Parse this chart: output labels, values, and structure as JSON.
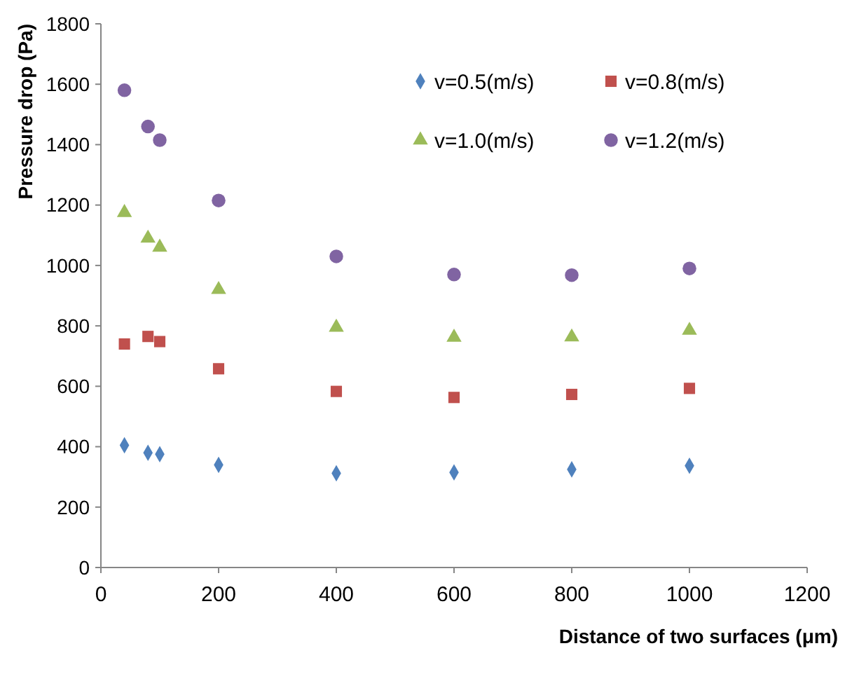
{
  "chart_data": {
    "type": "scatter",
    "xlabel": "Distance of two surfaces (μm)",
    "ylabel": "Pressure drop (Pa)",
    "x": [
      40,
      80,
      100,
      200,
      400,
      600,
      800,
      1000
    ],
    "series": [
      {
        "name": "v=0.5(m/s)",
        "color": "#4f81bd",
        "marker": "diamond",
        "values": [
          405,
          380,
          375,
          340,
          312,
          315,
          325,
          337
        ]
      },
      {
        "name": "v=0.8(m/s)",
        "color": "#c0504d",
        "marker": "square",
        "values": [
          740,
          765,
          748,
          658,
          583,
          563,
          573,
          593
        ]
      },
      {
        "name": "v=1.0(m/s)",
        "color": "#9bbb59",
        "marker": "triangle",
        "values": [
          1175,
          1090,
          1060,
          920,
          795,
          762,
          763,
          785
        ]
      },
      {
        "name": "v=1.2(m/s)",
        "color": "#8064a2",
        "marker": "circle",
        "values": [
          1580,
          1460,
          1415,
          1215,
          1030,
          970,
          968,
          990
        ]
      }
    ],
    "xlim": [
      0,
      1200
    ],
    "xticks": [
      0,
      200,
      400,
      600,
      800,
      1000,
      1200
    ],
    "ylim": [
      0,
      1800
    ],
    "yticks": [
      0,
      200,
      400,
      600,
      800,
      1000,
      1200,
      1400,
      1600,
      1800
    ],
    "grid": false,
    "legend": "top right"
  }
}
